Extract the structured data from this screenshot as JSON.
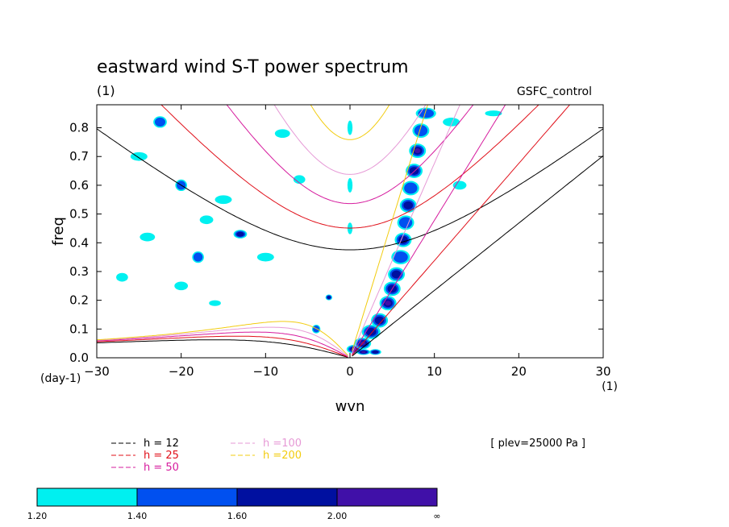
{
  "chart_data": {
    "type": "heatmap",
    "title": "eastward wind S-T power spectrum",
    "units_label": "(1)",
    "dataset_label": "GSFC_control",
    "xlabel": "wvn",
    "ylabel": "freq",
    "y_units_label": "(day-1)",
    "x_units_label": "(1)",
    "xlim": [
      -30,
      30
    ],
    "ylim": [
      0,
      0.88
    ],
    "x_ticks": [
      -30,
      -20,
      -10,
      0,
      10,
      20,
      30
    ],
    "x_tick_labels": [
      "-30",
      "-20",
      "-10",
      "0",
      "10",
      "20",
      "30"
    ],
    "y_ticks": [
      0,
      0.1,
      0.2,
      0.3,
      0.4,
      0.5,
      0.6,
      0.7,
      0.8
    ],
    "y_tick_labels": [
      "0.0",
      "0.1",
      "0.2",
      "0.3",
      "0.4",
      "0.5",
      "0.6",
      "0.7",
      "0.8"
    ],
    "plev_label": "[ plev=25000 Pa ]",
    "dispersion_curves": [
      {
        "name": "h = 12",
        "h": 12,
        "color": "#000000"
      },
      {
        "name": "h = 25",
        "h": 25,
        "color": "#e0101a"
      },
      {
        "name": "h = 50",
        "h": 50,
        "color": "#d61c9e"
      },
      {
        "name": "h =100",
        "h": 100,
        "color": "#e69ad6"
      },
      {
        "name": "h =200",
        "h": 200,
        "color": "#f2cc10"
      }
    ],
    "colorbar": {
      "labels": [
        "1.20",
        "1.40",
        "1.60",
        "2.00",
        "∞"
      ],
      "colors": [
        "#00f0f0",
        "#0050f0",
        "#0010a0",
        "#4010a8"
      ]
    },
    "blobs": [
      {
        "x": 0.5,
        "y": 0.03,
        "w": 1.8,
        "h": 0.03,
        "lvl": 3
      },
      {
        "x": 1.5,
        "y": 0.05,
        "w": 2.0,
        "h": 0.04,
        "lvl": 3
      },
      {
        "x": 2.5,
        "y": 0.09,
        "w": 2.2,
        "h": 0.05,
        "lvl": 2
      },
      {
        "x": 3.5,
        "y": 0.13,
        "w": 2.0,
        "h": 0.05,
        "lvl": 2
      },
      {
        "x": 4.5,
        "y": 0.19,
        "w": 2.0,
        "h": 0.05,
        "lvl": 3
      },
      {
        "x": 5.0,
        "y": 0.24,
        "w": 2.0,
        "h": 0.05,
        "lvl": 2
      },
      {
        "x": 5.5,
        "y": 0.29,
        "w": 2.0,
        "h": 0.05,
        "lvl": 2
      },
      {
        "x": 6.0,
        "y": 0.35,
        "w": 2.2,
        "h": 0.05,
        "lvl": 1
      },
      {
        "x": 6.3,
        "y": 0.41,
        "w": 2.0,
        "h": 0.05,
        "lvl": 2
      },
      {
        "x": 6.6,
        "y": 0.47,
        "w": 2.0,
        "h": 0.05,
        "lvl": 1
      },
      {
        "x": 6.9,
        "y": 0.53,
        "w": 2.0,
        "h": 0.05,
        "lvl": 2
      },
      {
        "x": 7.2,
        "y": 0.59,
        "w": 2.0,
        "h": 0.05,
        "lvl": 1
      },
      {
        "x": 7.6,
        "y": 0.65,
        "w": 2.0,
        "h": 0.05,
        "lvl": 2
      },
      {
        "x": 8.0,
        "y": 0.72,
        "w": 2.0,
        "h": 0.05,
        "lvl": 3
      },
      {
        "x": 8.4,
        "y": 0.79,
        "w": 2.0,
        "h": 0.05,
        "lvl": 1
      },
      {
        "x": 9.0,
        "y": 0.85,
        "w": 2.4,
        "h": 0.04,
        "lvl": 1
      },
      {
        "x": 3.0,
        "y": 0.02,
        "w": 1.4,
        "h": 0.02,
        "lvl": 2
      },
      {
        "x": 1.6,
        "y": 0.02,
        "w": 1.6,
        "h": 0.02,
        "lvl": 3
      },
      {
        "x": 0.0,
        "y": 0.6,
        "w": 0.6,
        "h": 0.05,
        "lvl": 0
      },
      {
        "x": 0.0,
        "y": 0.45,
        "w": 0.6,
        "h": 0.04,
        "lvl": 0
      },
      {
        "x": 0.0,
        "y": 0.8,
        "w": 0.6,
        "h": 0.05,
        "lvl": 0
      },
      {
        "x": -22.5,
        "y": 0.82,
        "w": 1.6,
        "h": 0.04,
        "lvl": 1
      },
      {
        "x": -18,
        "y": 0.35,
        "w": 1.4,
        "h": 0.04,
        "lvl": 1
      },
      {
        "x": -20,
        "y": 0.6,
        "w": 1.4,
        "h": 0.04,
        "lvl": 1
      },
      {
        "x": -13,
        "y": 0.43,
        "w": 1.6,
        "h": 0.03,
        "lvl": 2
      },
      {
        "x": -2.5,
        "y": 0.21,
        "w": 0.8,
        "h": 0.02,
        "lvl": 2
      },
      {
        "x": -4,
        "y": 0.1,
        "w": 1.0,
        "h": 0.03,
        "lvl": 1
      },
      {
        "x": -25,
        "y": 0.7,
        "w": 2.0,
        "h": 0.03,
        "lvl": 0
      },
      {
        "x": -15,
        "y": 0.55,
        "w": 2.0,
        "h": 0.03,
        "lvl": 0
      },
      {
        "x": -10,
        "y": 0.35,
        "w": 2.0,
        "h": 0.03,
        "lvl": 0
      },
      {
        "x": -24,
        "y": 0.42,
        "w": 1.8,
        "h": 0.03,
        "lvl": 0
      },
      {
        "x": -20,
        "y": 0.25,
        "w": 1.6,
        "h": 0.03,
        "lvl": 0
      },
      {
        "x": -8,
        "y": 0.78,
        "w": 1.8,
        "h": 0.03,
        "lvl": 0
      },
      {
        "x": 12,
        "y": 0.82,
        "w": 2.0,
        "h": 0.03,
        "lvl": 0
      },
      {
        "x": 17,
        "y": 0.85,
        "w": 2.0,
        "h": 0.02,
        "lvl": 0
      },
      {
        "x": 13,
        "y": 0.6,
        "w": 1.6,
        "h": 0.03,
        "lvl": 0
      },
      {
        "x": -17,
        "y": 0.48,
        "w": 1.6,
        "h": 0.03,
        "lvl": 0
      },
      {
        "x": -27,
        "y": 0.28,
        "w": 1.4,
        "h": 0.03,
        "lvl": 0
      },
      {
        "x": -6,
        "y": 0.62,
        "w": 1.4,
        "h": 0.03,
        "lvl": 0
      },
      {
        "x": -16,
        "y": 0.19,
        "w": 1.4,
        "h": 0.02,
        "lvl": 0
      }
    ]
  }
}
